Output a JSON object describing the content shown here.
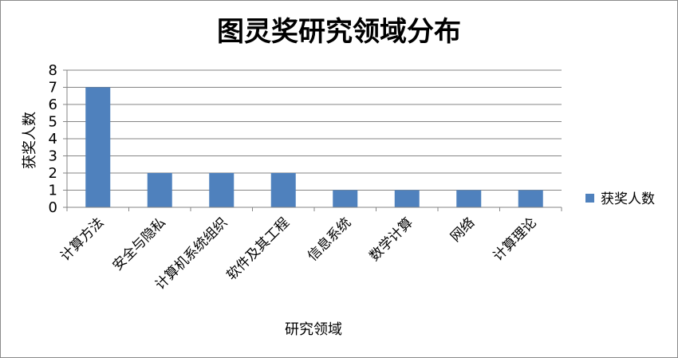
{
  "chart_data": {
    "type": "bar",
    "title": "图灵奖研究领域分布",
    "xlabel": "研究领域",
    "ylabel": "获奖人数",
    "categories": [
      "计算方法",
      "安全与隐私",
      "计算机系统组织",
      "软件及其工程",
      "信息系统",
      "数学计算",
      "网络",
      "计算理论"
    ],
    "series": [
      {
        "name": "获奖人数",
        "values": [
          7,
          2,
          2,
          2,
          1,
          1,
          1,
          1
        ],
        "color": "#4f81bd"
      }
    ],
    "ylim": [
      0,
      8
    ],
    "yticks": [
      0,
      1,
      2,
      3,
      4,
      5,
      6,
      7,
      8
    ],
    "grid": true,
    "legend_position": "right"
  }
}
